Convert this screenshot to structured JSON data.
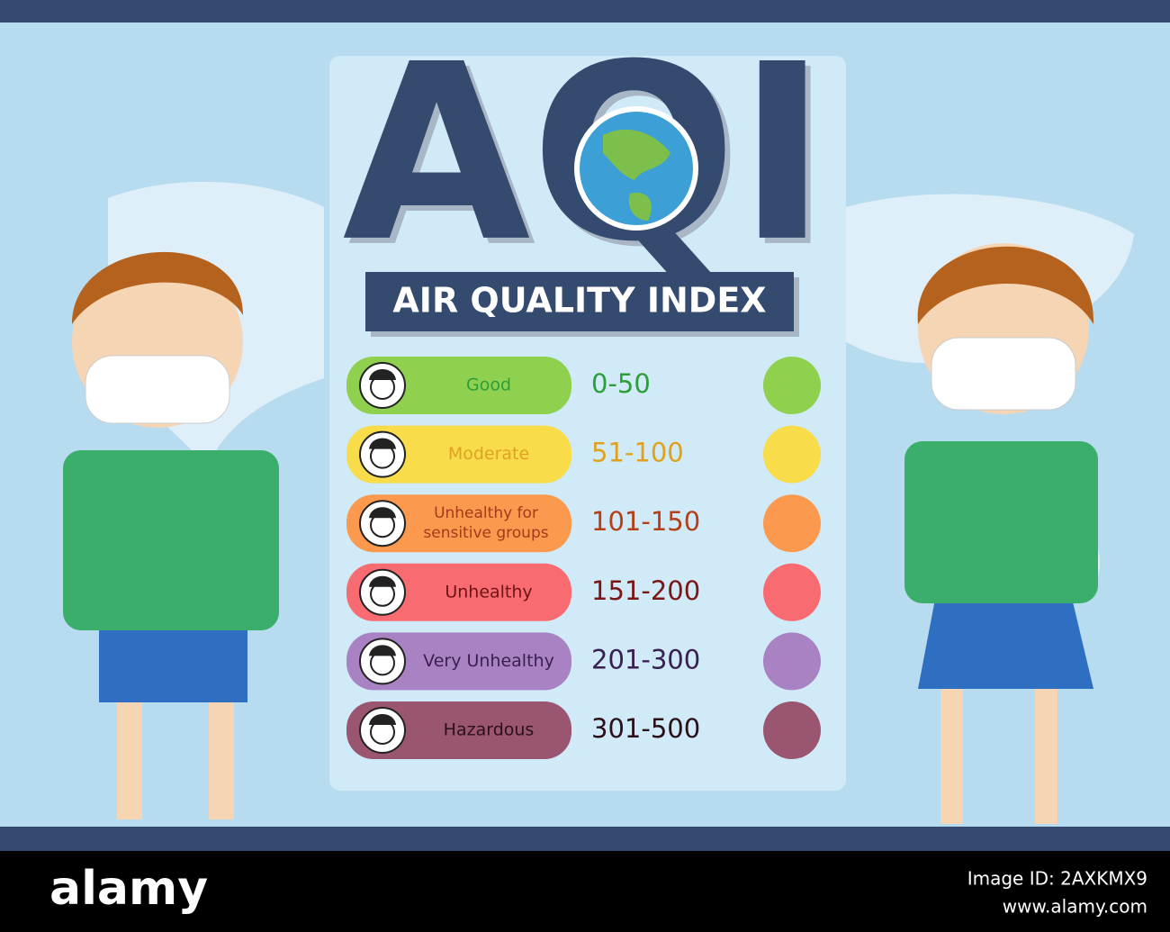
{
  "header": {
    "title": "AQI",
    "subtitle": "AIR QUALITY INDEX"
  },
  "levels": [
    {
      "label": "Good",
      "range": "0-50",
      "color": "#8fd14f",
      "label_color": "#2e9e3a",
      "range_color": "#2e9e3a"
    },
    {
      "label": "Moderate",
      "range": "51-100",
      "color": "#f8dc4a",
      "label_color": "#e0a21e",
      "range_color": "#e0a21e"
    },
    {
      "label": "Unhealthy for sensitive groups",
      "range": "101-150",
      "color": "#fb9a4f",
      "label_color": "#a8381a",
      "range_color": "#b3401a"
    },
    {
      "label": "Unhealthy",
      "range": "151-200",
      "color": "#f86b70",
      "label_color": "#6e1414",
      "range_color": "#7a1616"
    },
    {
      "label": "Very Unhealthy",
      "range": "201-300",
      "color": "#a982c3",
      "label_color": "#3a2050",
      "range_color": "#3a2050"
    },
    {
      "label": "Hazardous",
      "range": "301-500",
      "color": "#9a5570",
      "label_color": "#2a1018",
      "range_color": "#2a1018"
    }
  ],
  "footer": {
    "brand": "alamy",
    "image_id": "Image ID: 2AXKMX9",
    "url": "www.alamy.com"
  }
}
